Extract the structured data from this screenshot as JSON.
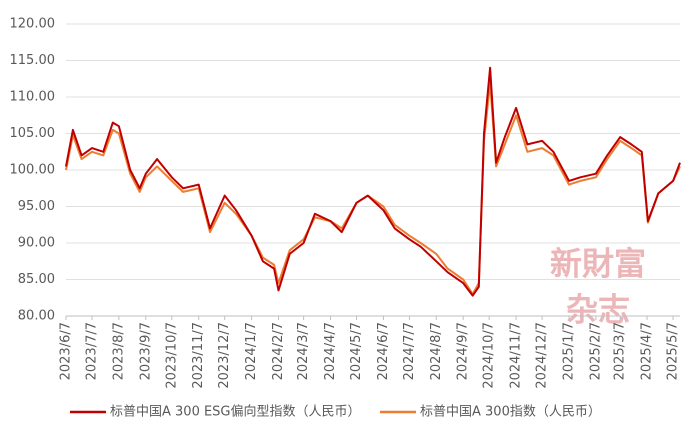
{
  "chart_data": {
    "type": "line",
    "x": [
      "2023/6/7",
      "2023/6/15",
      "2023/6/25",
      "2023/7/7",
      "2023/7/20",
      "2023/7/31",
      "2023/8/7",
      "2023/8/20",
      "2023/8/31",
      "2023/9/7",
      "2023/9/20",
      "2023/10/7",
      "2023/10/20",
      "2023/11/7",
      "2023/11/20",
      "2023/12/7",
      "2023/12/20",
      "2024/1/7",
      "2024/1/20",
      "2024/2/2",
      "2024/2/7",
      "2024/2/20",
      "2024/3/7",
      "2024/3/20",
      "2024/4/7",
      "2024/4/20",
      "2024/5/7",
      "2024/5/20",
      "2024/6/7",
      "2024/6/20",
      "2024/7/7",
      "2024/7/20",
      "2024/8/7",
      "2024/8/20",
      "2024/9/7",
      "2024/9/18",
      "2024/9/25",
      "2024/10/1",
      "2024/10/8",
      "2024/10/15",
      "2024/10/25",
      "2024/11/7",
      "2024/11/20",
      "2024/12/7",
      "2024/12/20",
      "2025/1/7",
      "2025/1/20",
      "2025/2/7",
      "2025/2/20",
      "2025/3/7",
      "2025/3/20",
      "2025/4/1",
      "2025/4/8",
      "2025/4/20",
      "2025/5/7",
      "2025/5/15"
    ],
    "series": [
      {
        "name": "标普中国A 300 ESG偏向型指数（人民币）",
        "color": "#c00000",
        "values": [
          100.5,
          105.5,
          102.0,
          103.0,
          102.5,
          106.5,
          106.0,
          100.0,
          97.5,
          99.5,
          101.5,
          99.0,
          97.5,
          98.0,
          92.0,
          96.5,
          94.5,
          91.0,
          87.5,
          86.5,
          83.5,
          88.5,
          90.0,
          94.0,
          93.0,
          91.5,
          95.5,
          96.5,
          94.5,
          92.0,
          90.5,
          89.5,
          87.5,
          86.0,
          84.5,
          82.8,
          84.0,
          105.0,
          114.0,
          101.0,
          104.5,
          108.5,
          103.5,
          104.0,
          102.5,
          98.5,
          99.0,
          99.5,
          102.0,
          104.5,
          103.5,
          102.5,
          93.0,
          96.8,
          98.5,
          101.0
        ]
      },
      {
        "name": "标普中国A 300指数（人民币）",
        "color": "#ed7d31",
        "values": [
          100.0,
          104.8,
          101.5,
          102.5,
          102.0,
          105.5,
          105.0,
          99.5,
          97.0,
          99.0,
          100.5,
          98.5,
          97.0,
          97.5,
          91.5,
          95.5,
          94.0,
          91.0,
          88.0,
          87.0,
          84.5,
          89.0,
          90.5,
          93.5,
          93.0,
          92.0,
          95.5,
          96.5,
          95.0,
          92.5,
          91.0,
          90.0,
          88.5,
          86.5,
          85.0,
          83.0,
          84.5,
          104.0,
          112.0,
          100.5,
          103.5,
          107.5,
          102.5,
          103.0,
          102.0,
          98.0,
          98.5,
          99.0,
          101.5,
          104.0,
          103.0,
          102.0,
          92.8,
          96.8,
          98.5,
          100.5
        ]
      }
    ],
    "xlim": [
      "2023/6/7",
      "2025/5/15"
    ],
    "xticks": [
      "2023/6/7",
      "2023/7/7",
      "2023/8/7",
      "2023/9/7",
      "2023/10/7",
      "2023/11/7",
      "2023/12/7",
      "2024/1/7",
      "2024/2/7",
      "2024/3/7",
      "2024/4/7",
      "2024/5/7",
      "2024/6/7",
      "2024/7/7",
      "2024/8/7",
      "2024/9/7",
      "2024/10/7",
      "2024/11/7",
      "2024/12/7",
      "2025/1/7",
      "2025/2/7",
      "2025/3/7",
      "2025/4/7",
      "2025/5/7"
    ],
    "ylim": [
      80,
      120
    ],
    "yticks": [
      {
        "value": 80,
        "label": "80.00"
      },
      {
        "value": 85,
        "label": "85.00"
      },
      {
        "value": 90,
        "label": "90.00"
      },
      {
        "value": 95,
        "label": "95.00"
      },
      {
        "value": 100,
        "label": "100.00"
      },
      {
        "value": 105,
        "label": "105.00"
      },
      {
        "value": 110,
        "label": "110.00"
      },
      {
        "value": 115,
        "label": "115.00"
      },
      {
        "value": 120,
        "label": "120.00"
      }
    ],
    "grid": true,
    "watermark": [
      "新財富",
      "杂志"
    ]
  }
}
